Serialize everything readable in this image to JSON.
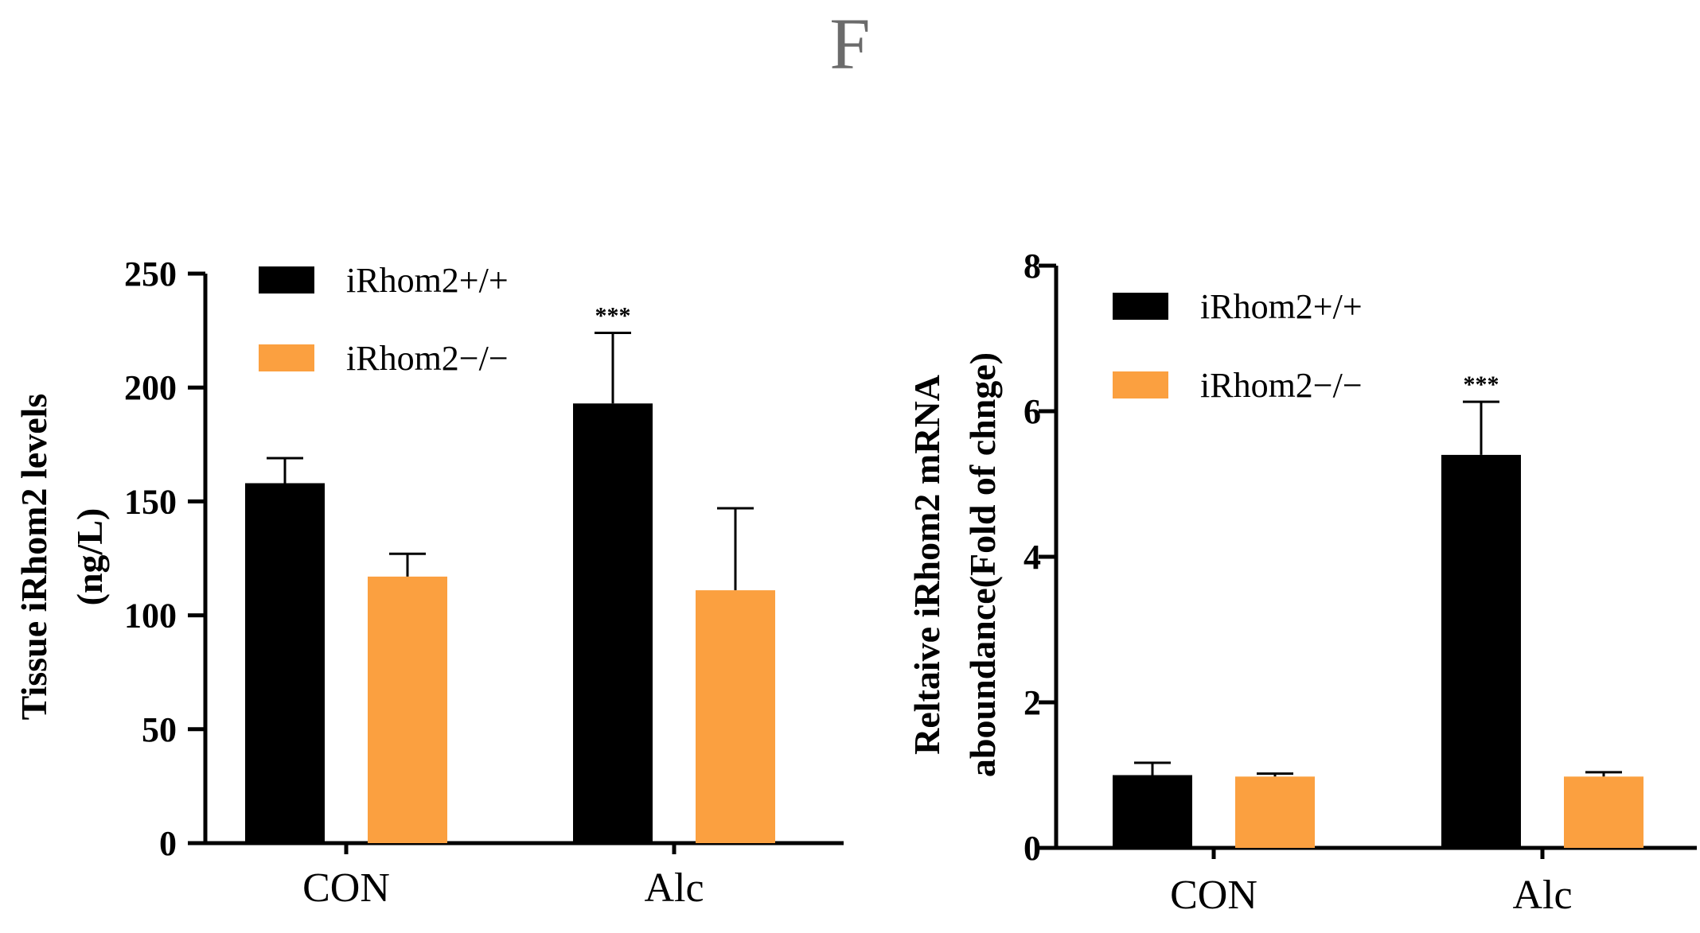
{
  "panel_label": "F",
  "colors": {
    "wild_type": "#000000",
    "knockout": "#FBA040",
    "axis": "#000000"
  },
  "chart_data": [
    {
      "type": "bar",
      "categories": [
        "CON",
        "Alc"
      ],
      "series": [
        {
          "name": "iRhom2+/+",
          "values": [
            158,
            193
          ],
          "errors": [
            11,
            31
          ]
        },
        {
          "name": "iRhom2−/−",
          "values": [
            117,
            111
          ],
          "errors": [
            10,
            36
          ]
        }
      ],
      "significance": [
        "",
        "***"
      ],
      "ylabel": "Tissue iRhom2 levels",
      "ylabel2": "(ng/L)",
      "ylim": [
        0,
        250
      ],
      "yticks": [
        0,
        50,
        100,
        150,
        200,
        250
      ]
    },
    {
      "type": "bar",
      "categories": [
        "CON",
        "Alc"
      ],
      "series": [
        {
          "name": "iRhom2+/+",
          "values": [
            1.0,
            5.4
          ],
          "errors": [
            0.17,
            0.73
          ]
        },
        {
          "name": "iRhom2−/−",
          "values": [
            0.98,
            0.98
          ],
          "errors": [
            0.04,
            0.06
          ]
        }
      ],
      "significance": [
        "",
        "***"
      ],
      "ylabel": "Reltaive iRhom2 mRNA",
      "ylabel2": "aboundance(Fold of chnge)",
      "ylim": [
        0,
        8
      ],
      "yticks": [
        0,
        2,
        4,
        6,
        8
      ]
    }
  ]
}
